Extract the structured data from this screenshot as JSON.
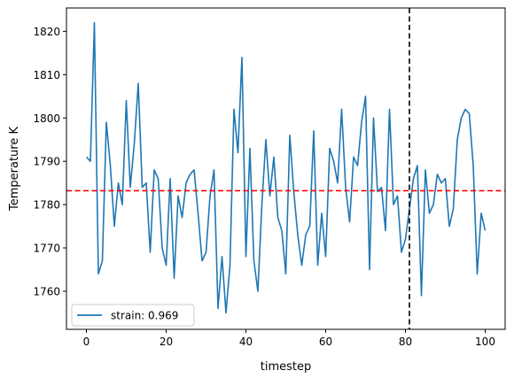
{
  "chart_data": {
    "type": "line",
    "title": "",
    "xlabel": "timestep",
    "ylabel": "Temperature K",
    "xlim": [
      -5,
      105
    ],
    "ylim": [
      1751.2,
      1825.4
    ],
    "xticks": [
      0,
      20,
      40,
      60,
      80,
      100
    ],
    "yticks": [
      1760,
      1770,
      1780,
      1790,
      1800,
      1810,
      1820
    ],
    "grid": false,
    "legend_position": "lower-left",
    "series": [
      {
        "name": "strain: 0.969",
        "color": "#1f77b4",
        "x": [
          0,
          1,
          2,
          3,
          4,
          5,
          6,
          7,
          8,
          9,
          10,
          11,
          12,
          13,
          14,
          15,
          16,
          17,
          18,
          19,
          20,
          21,
          22,
          23,
          24,
          25,
          26,
          27,
          28,
          29,
          30,
          31,
          32,
          33,
          34,
          35,
          36,
          37,
          38,
          39,
          40,
          41,
          42,
          43,
          44,
          45,
          46,
          47,
          48,
          49,
          50,
          51,
          52,
          53,
          54,
          55,
          56,
          57,
          58,
          59,
          60,
          61,
          62,
          63,
          64,
          65,
          66,
          67,
          68,
          69,
          70,
          71,
          72,
          73,
          74,
          75,
          76,
          77,
          78,
          79,
          80,
          81,
          82,
          83,
          84,
          85,
          86,
          87,
          88,
          89,
          90,
          91,
          92,
          93,
          94,
          95,
          96,
          97,
          98,
          99,
          100
        ],
        "values": [
          1791,
          1790,
          1822,
          1764,
          1767,
          1799,
          1789,
          1775,
          1785,
          1780,
          1804,
          1784,
          1794,
          1808,
          1784,
          1785,
          1769,
          1788,
          1786,
          1770,
          1766,
          1786,
          1763,
          1782,
          1777,
          1785,
          1787,
          1788,
          1778,
          1767,
          1769,
          1782,
          1788,
          1756,
          1768,
          1755,
          1766,
          1802,
          1792,
          1814,
          1768,
          1793,
          1767,
          1760,
          1780,
          1795,
          1782,
          1791,
          1777,
          1774,
          1764,
          1796,
          1783,
          1773,
          1766,
          1773,
          1775,
          1797,
          1766,
          1778,
          1768,
          1793,
          1790,
          1785,
          1802,
          1784,
          1776,
          1791,
          1789,
          1799,
          1805,
          1765,
          1800,
          1783,
          1784,
          1774,
          1802,
          1780,
          1782,
          1769,
          1772,
          1779,
          1786,
          1789,
          1759,
          1788,
          1778,
          1780,
          1787,
          1785,
          1786,
          1775,
          1779,
          1795,
          1800,
          1802,
          1801,
          1789,
          1764,
          1778,
          1774
        ]
      }
    ],
    "hlines": [
      {
        "y": 1783.2,
        "color": "#ff0000",
        "style": "dashed"
      }
    ],
    "vlines": [
      {
        "x": 81,
        "color": "#000000",
        "style": "dashed"
      }
    ]
  }
}
